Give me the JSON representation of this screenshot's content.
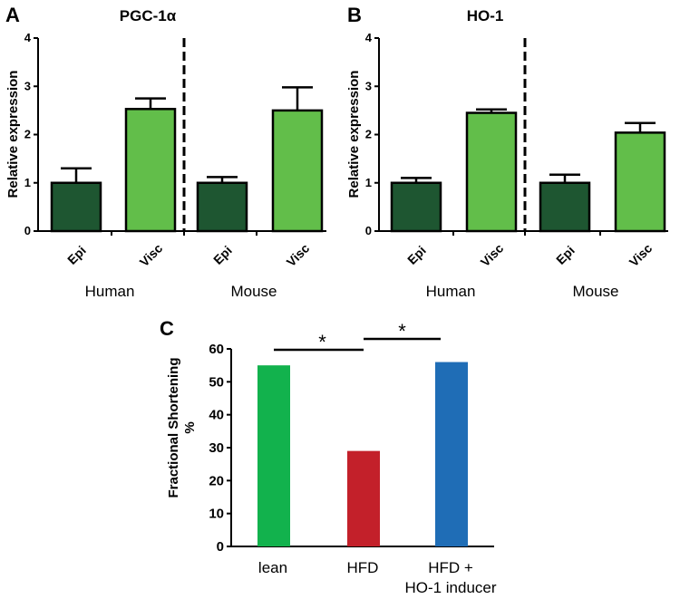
{
  "chart_data": [
    {
      "panel": "A",
      "type": "bar",
      "title": "PGC-1α",
      "ylabel": "Relative expression",
      "ylim": [
        0,
        4
      ],
      "yticks": [
        "0",
        "1",
        "2",
        "3",
        "4"
      ],
      "categories": [
        "Epi",
        "Visc",
        "Epi",
        "Visc"
      ],
      "groups": [
        "Human",
        "Mouse"
      ],
      "values": [
        1.0,
        2.53,
        1.0,
        2.5
      ],
      "errors": [
        0.3,
        0.22,
        0.12,
        0.48
      ],
      "colors": [
        "#1e5631",
        "#62be4a",
        "#1e5631",
        "#62be4a"
      ]
    },
    {
      "panel": "B",
      "type": "bar",
      "title": "HO-1",
      "ylabel": "Relative expression",
      "ylim": [
        0,
        4
      ],
      "yticks": [
        "0",
        "1",
        "2",
        "3",
        "4"
      ],
      "categories": [
        "Epi",
        "Visc",
        "Epi",
        "Visc"
      ],
      "groups": [
        "Human",
        "Mouse"
      ],
      "values": [
        1.0,
        2.45,
        1.0,
        2.04
      ],
      "errors": [
        0.1,
        0.07,
        0.17,
        0.2
      ],
      "colors": [
        "#1e5631",
        "#62be4a",
        "#1e5631",
        "#62be4a"
      ]
    },
    {
      "panel": "C",
      "type": "bar",
      "ylabel": "Fractional Shortening %",
      "ylim": [
        0,
        60
      ],
      "yticks": [
        "0",
        "10",
        "20",
        "30",
        "40",
        "50",
        "60"
      ],
      "categories": [
        "lean",
        "HFD",
        "HFD + HO-1 inducer"
      ],
      "values": [
        55,
        29,
        56
      ],
      "colors": [
        "#12b24d",
        "#c3202a",
        "#1f6db6"
      ],
      "significance": [
        {
          "from": "lean",
          "to": "HFD",
          "label": "*"
        },
        {
          "from": "HFD",
          "to": "HFD + HO-1 inducer",
          "label": "*"
        }
      ]
    }
  ],
  "labels": {
    "panel_a": "A",
    "panel_b": "B",
    "panel_c": "C",
    "c_ylabel_line1": "Fractional Shortening",
    "c_ylabel_line2": "%",
    "c_cat3_line1": "HFD +",
    "c_cat3_line2": "HO-1 inducer"
  }
}
